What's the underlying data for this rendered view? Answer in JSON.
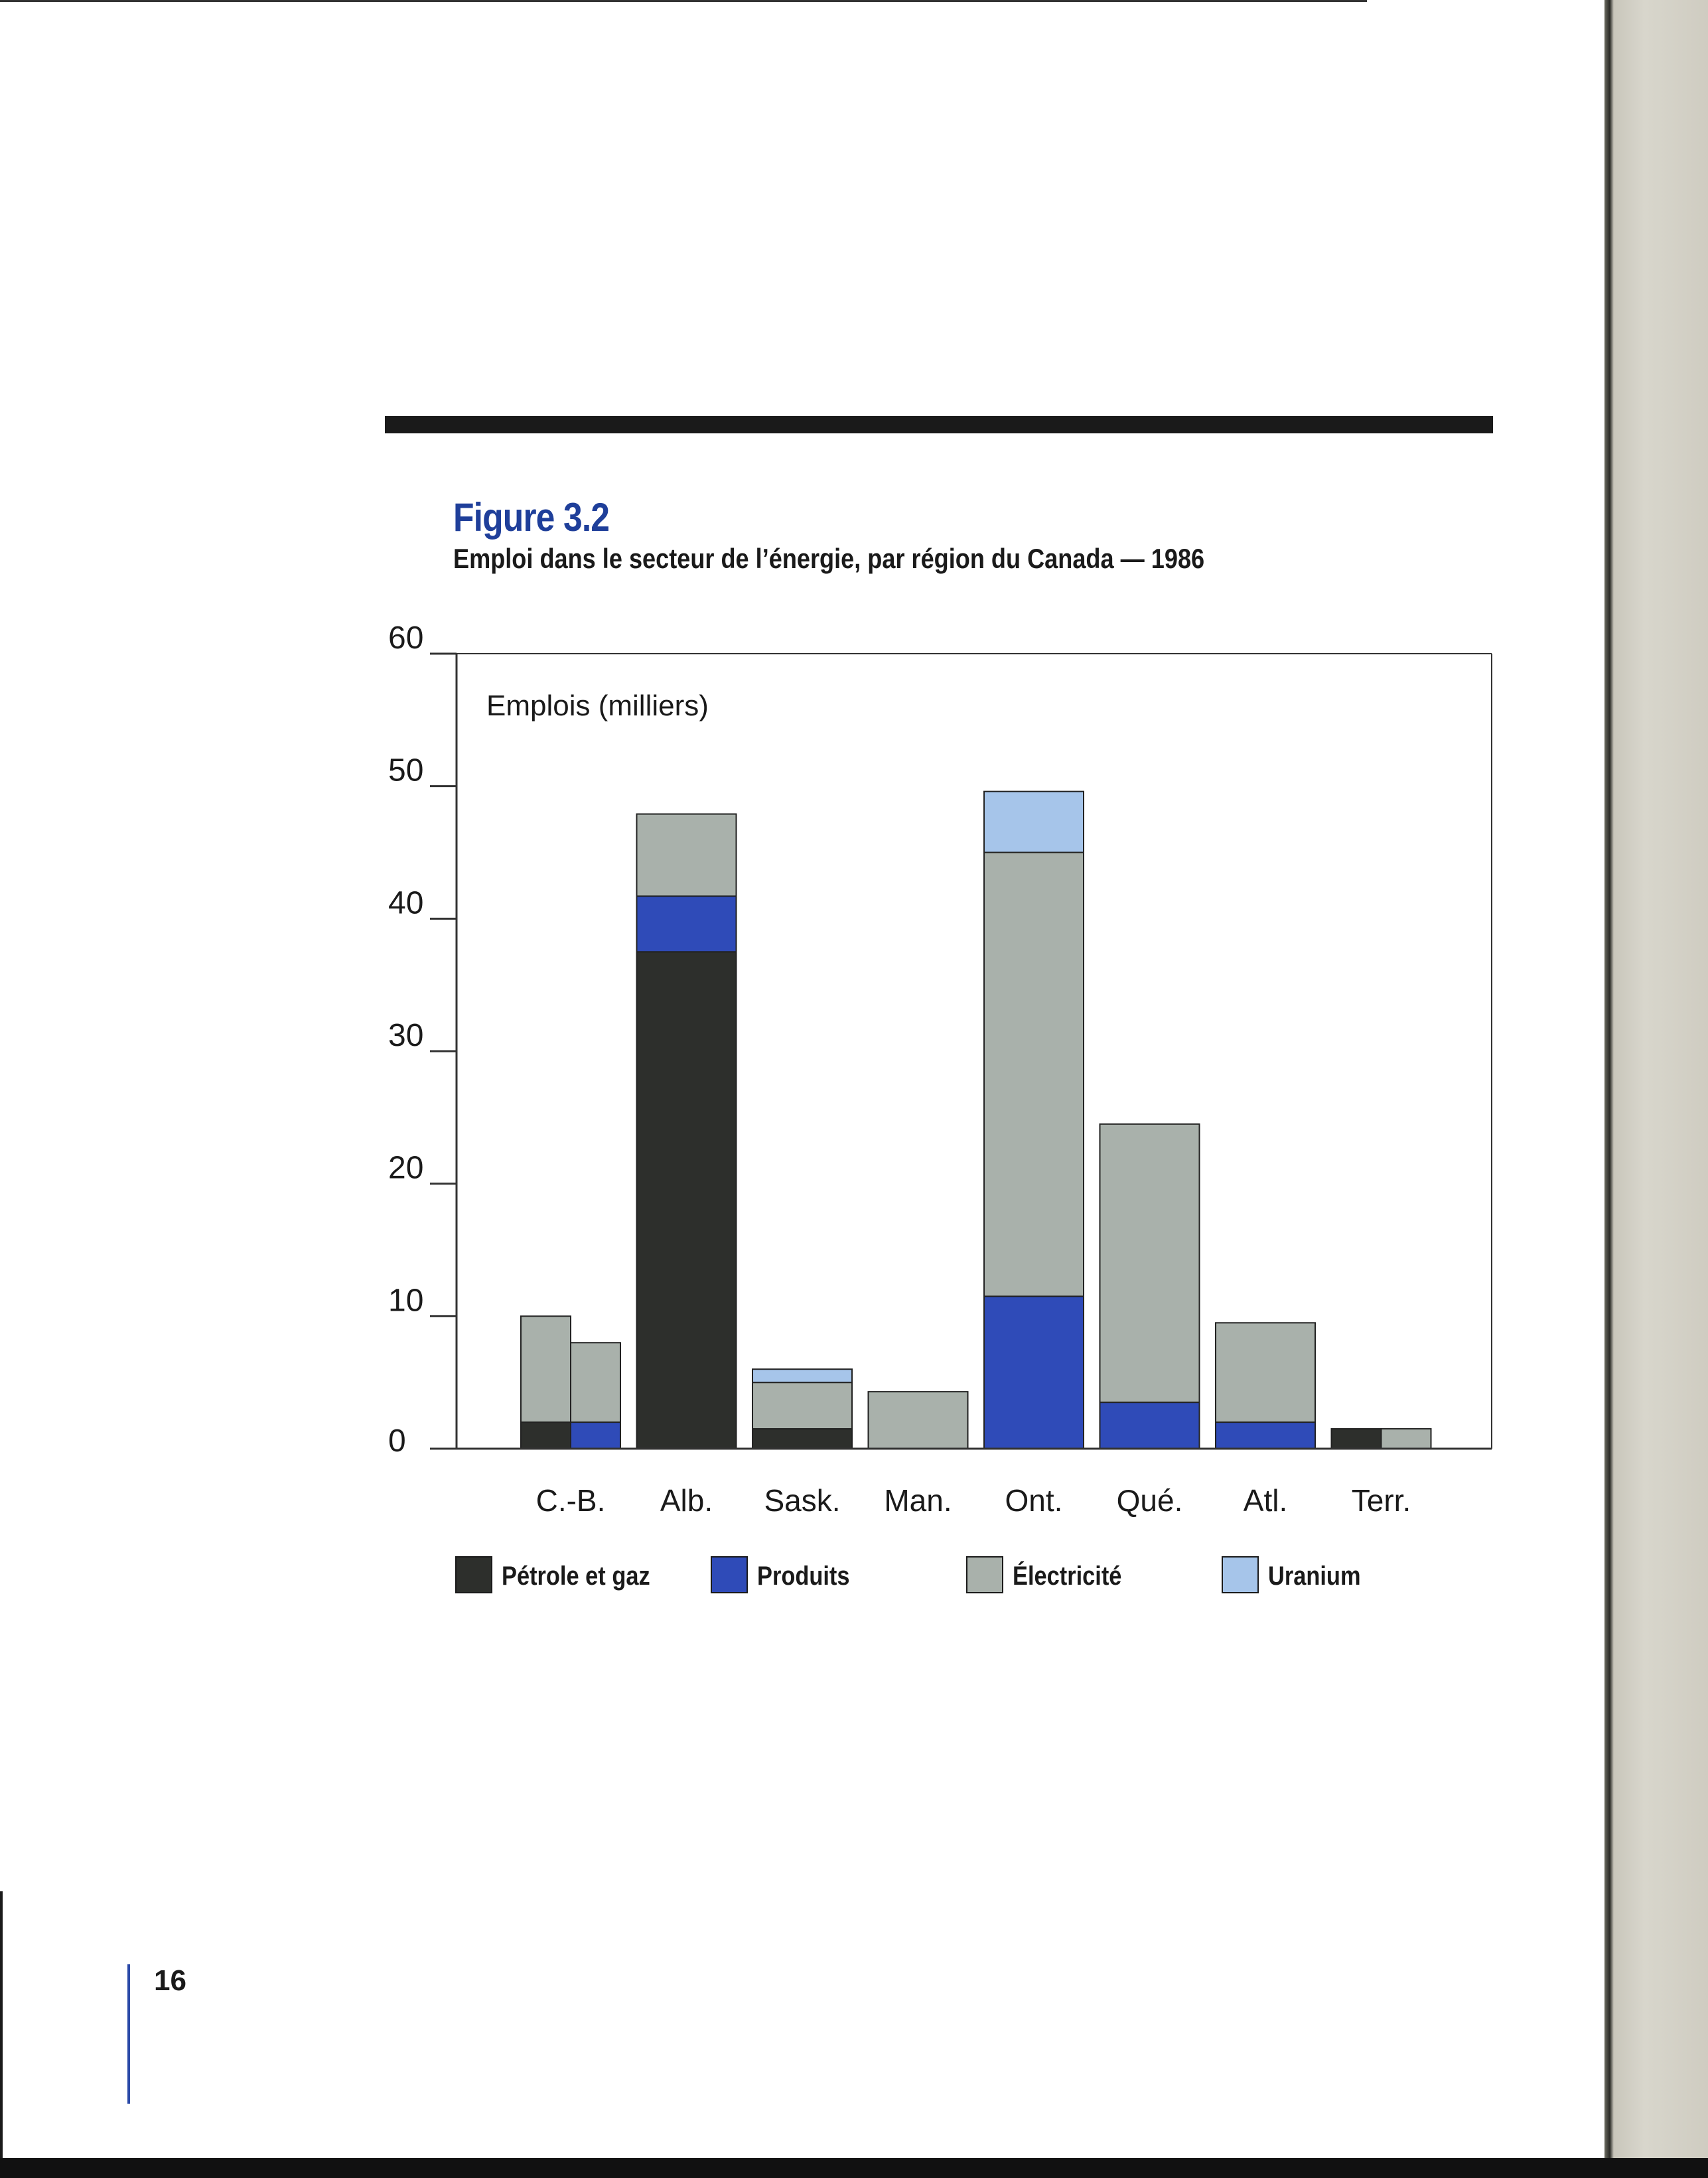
{
  "figure": {
    "label": "Figure 3.2",
    "title": "Emploi dans le secteur de l’énergie, par région du Canada — 1986"
  },
  "page_number": "16",
  "colors": {
    "petrole_gaz": "#2d2f2c",
    "produits": "#2f4bb8",
    "electricite": "#a9b1ab",
    "uranium": "#a6c5ea",
    "heading_blue": "#1f3f9a"
  },
  "chart_data": {
    "type": "bar",
    "stacked": true,
    "title": "",
    "ylabel": "Emplois (milliers)",
    "xlabel": "",
    "ylim": [
      0,
      60
    ],
    "yticks": [
      "0",
      "10",
      "20",
      "30",
      "40",
      "50",
      "60"
    ],
    "categories": [
      "C.-B.",
      "Alb.",
      "Sask.",
      "Man.",
      "Ont.",
      "Qué.",
      "Atl.",
      "Terr."
    ],
    "series": [
      {
        "name": "Pétrole et gaz",
        "values": [
          2.0,
          37.5,
          1.5,
          0,
          0,
          0,
          0,
          1.5
        ]
      },
      {
        "name": "Produits",
        "values": [
          2.0,
          4.2,
          0,
          0,
          11.5,
          3.5,
          2.0,
          0
        ]
      },
      {
        "name": "Électricité",
        "values": [
          6.0,
          6.2,
          3.5,
          4.3,
          33.5,
          21.0,
          7.5,
          1.5
        ]
      },
      {
        "name": "Uranium",
        "values": [
          0,
          0,
          1.0,
          0,
          4.6,
          0,
          0,
          0
        ]
      }
    ],
    "grid": false,
    "legend_position": "bottom"
  }
}
